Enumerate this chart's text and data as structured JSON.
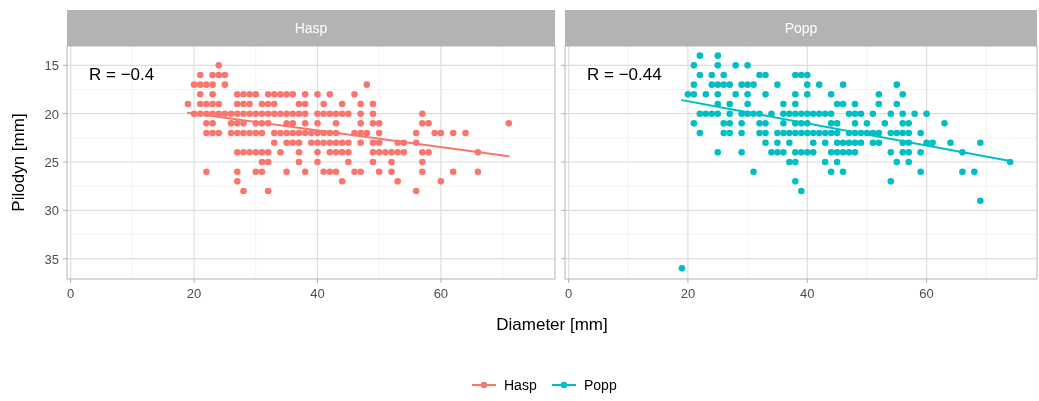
{
  "chart_data": [
    {
      "type": "scatter",
      "title": "Hasp",
      "ylabel": "Pilodyn [mm]",
      "xlabel": "Diameter [mm]",
      "xlim": [
        -0.6,
        78.5
      ],
      "xticks": [
        0,
        20,
        40,
        60
      ],
      "ylim": [
        37.1,
        13.0
      ],
      "yticks": [
        15,
        20,
        25,
        30,
        35
      ],
      "grid": true,
      "legend": "bottom",
      "annotations": [
        "R = −0.4"
      ],
      "series": [
        {
          "name": "Hasp",
          "color": "#f8766d",
          "marker": "circle",
          "x": [
            24,
            21,
            23,
            24,
            25,
            20,
            21,
            22,
            23,
            25,
            48,
            21,
            23,
            27,
            28,
            29,
            30,
            32,
            33,
            34,
            35,
            36,
            38,
            40,
            42,
            46,
            19,
            21,
            22,
            23,
            24,
            27,
            28,
            29,
            31,
            32,
            33,
            37,
            38,
            41,
            44,
            47,
            49,
            20,
            21,
            22,
            23,
            24,
            25,
            26,
            27,
            28,
            29,
            30,
            31,
            32,
            33,
            34,
            35,
            36,
            37,
            38,
            40,
            41,
            42,
            43,
            44,
            45,
            47,
            49,
            57,
            22,
            23,
            26,
            27,
            28,
            30,
            31,
            32,
            35,
            36,
            38,
            40,
            43,
            47,
            49,
            50,
            57,
            58,
            71,
            22,
            23,
            24,
            26,
            27,
            28,
            29,
            30,
            31,
            33,
            34,
            35,
            36,
            37,
            38,
            39,
            40,
            41,
            42,
            43,
            46,
            47,
            48,
            50,
            56,
            59,
            60,
            62,
            64,
            33,
            35,
            36,
            37,
            39,
            40,
            41,
            42,
            43,
            44,
            45,
            47,
            49,
            50,
            53,
            54,
            56,
            27,
            28,
            29,
            30,
            31,
            32,
            34,
            37,
            40,
            42,
            43,
            44,
            45,
            49,
            50,
            51,
            52,
            53,
            54,
            57,
            58,
            66,
            31,
            32,
            37,
            40,
            45,
            49,
            52,
            57,
            22,
            27,
            30,
            31,
            35,
            38,
            41,
            42,
            43,
            46,
            47,
            50,
            52,
            57,
            62,
            66,
            27,
            44,
            53,
            60,
            28,
            32,
            56
          ],
          "values": [
            15,
            16,
            16,
            16,
            16,
            17,
            17,
            17,
            17,
            17,
            17,
            18,
            18,
            18,
            18,
            18,
            18,
            18,
            18,
            18,
            18,
            18,
            18,
            18,
            18,
            18,
            19,
            19,
            19,
            19,
            19,
            19,
            19,
            19,
            19,
            19,
            19,
            19,
            19,
            19,
            19,
            19,
            19,
            20,
            20,
            20,
            20,
            20,
            20,
            20,
            20,
            20,
            20,
            20,
            20,
            20,
            20,
            20,
            20,
            20,
            20,
            20,
            20,
            20,
            20,
            20,
            20,
            20,
            20,
            20,
            20,
            21,
            21,
            21,
            21,
            21,
            21,
            21,
            21,
            21,
            21,
            21,
            21,
            21,
            21,
            21,
            21,
            21,
            21,
            21,
            22,
            22,
            22,
            22,
            22,
            22,
            22,
            22,
            22,
            22,
            22,
            22,
            22,
            22,
            22,
            22,
            22,
            22,
            22,
            22,
            22,
            22,
            22,
            22,
            22,
            22,
            22,
            22,
            22,
            23,
            23,
            23,
            23,
            23,
            23,
            23,
            23,
            23,
            23,
            23,
            23,
            23,
            23,
            23,
            23,
            23,
            24,
            24,
            24,
            24,
            24,
            24,
            24,
            24,
            24,
            24,
            24,
            24,
            24,
            24,
            24,
            24,
            24,
            24,
            24,
            24,
            24,
            24,
            25,
            25,
            25,
            25,
            25,
            25,
            25,
            25,
            26,
            26,
            26,
            26,
            26,
            26,
            26,
            26,
            26,
            26,
            26,
            26,
            26,
            26,
            26,
            26,
            27,
            27,
            27,
            27,
            28,
            28,
            28
          ]
        },
        {
          "type": "line",
          "color": "#f8766d",
          "marker": "none",
          "x": [
            19,
            71
          ],
          "values": [
            19.9,
            24.4
          ]
        }
      ]
    },
    {
      "type": "scatter",
      "title": "Popp",
      "xlim": [
        -0.6,
        78.5
      ],
      "xticks": [
        0,
        20,
        40,
        60
      ],
      "ylim": [
        37.1,
        13.0
      ],
      "yticks": [
        15,
        20,
        25,
        30,
        35
      ],
      "tick_labels": "x",
      "grid": true,
      "legend": "bottom",
      "annotations": [
        "R = −0.44"
      ],
      "series": [
        {
          "name": "Popp",
          "color": "#00bfc4",
          "marker": "circle",
          "x": [
            22,
            25,
            21,
            25,
            28,
            30,
            22,
            24,
            26,
            32,
            33,
            38,
            39,
            40,
            21,
            24,
            25,
            26,
            27,
            29,
            30,
            31,
            35,
            40,
            42,
            46,
            55,
            20,
            21,
            23,
            25,
            28,
            30,
            33,
            38,
            40,
            44,
            52,
            56,
            25,
            27,
            30,
            36,
            38,
            45,
            46,
            48,
            52,
            55,
            22,
            23,
            24,
            25,
            27,
            29,
            30,
            31,
            32,
            34,
            36,
            37,
            38,
            39,
            40,
            41,
            42,
            43,
            44,
            47,
            48,
            49,
            51,
            54,
            56,
            58,
            60,
            21,
            26,
            27,
            29,
            32,
            33,
            36,
            38,
            39,
            40,
            44,
            45,
            48,
            50,
            53,
            56,
            57,
            63,
            22,
            26,
            27,
            29,
            32,
            33,
            35,
            36,
            37,
            38,
            39,
            40,
            41,
            42,
            43,
            44,
            45,
            47,
            48,
            49,
            50,
            51,
            52,
            54,
            55,
            56,
            57,
            59,
            33,
            35,
            37,
            41,
            43,
            45,
            46,
            47,
            48,
            49,
            51,
            52,
            56,
            57,
            60,
            61,
            64,
            69,
            25,
            29,
            34,
            35,
            36,
            38,
            39,
            40,
            41,
            44,
            45,
            46,
            47,
            48,
            54,
            56,
            57,
            59,
            66,
            37,
            38,
            43,
            45,
            55,
            57,
            74,
            31,
            44,
            46,
            59,
            66,
            68,
            38,
            54,
            39,
            69,
            19
          ],
          "values": [
            14,
            14,
            15,
            15,
            15,
            15,
            16,
            16,
            16,
            16,
            16,
            16,
            16,
            16,
            17,
            17,
            17,
            17,
            17,
            17,
            17,
            17,
            17,
            17,
            17,
            17,
            17,
            18,
            18,
            18,
            18,
            18,
            18,
            18,
            18,
            18,
            18,
            18,
            18,
            19,
            19,
            19,
            19,
            19,
            19,
            19,
            19,
            19,
            19,
            20,
            20,
            20,
            20,
            20,
            20,
            20,
            20,
            20,
            20,
            20,
            20,
            20,
            20,
            20,
            20,
            20,
            20,
            20,
            20,
            20,
            20,
            20,
            20,
            20,
            20,
            20,
            21,
            21,
            21,
            21,
            21,
            21,
            21,
            21,
            21,
            21,
            21,
            21,
            21,
            21,
            21,
            21,
            21,
            21,
            22,
            22,
            22,
            22,
            22,
            22,
            22,
            22,
            22,
            22,
            22,
            22,
            22,
            22,
            22,
            22,
            22,
            22,
            22,
            22,
            22,
            22,
            22,
            22,
            22,
            22,
            22,
            22,
            23,
            23,
            23,
            23,
            23,
            23,
            23,
            23,
            23,
            23,
            23,
            23,
            23,
            23,
            23,
            23,
            23,
            23,
            24,
            24,
            24,
            24,
            24,
            24,
            24,
            24,
            24,
            24,
            24,
            24,
            24,
            24,
            24,
            24,
            24,
            24,
            24,
            25,
            25,
            25,
            25,
            25,
            25,
            25,
            26,
            26,
            26,
            26,
            26,
            26,
            27,
            27,
            28,
            29,
            36
          ]
        },
        {
          "type": "line",
          "color": "#00bfc4",
          "marker": "none",
          "x": [
            19,
            74
          ],
          "values": [
            18.6,
            24.9
          ]
        }
      ]
    }
  ]
}
